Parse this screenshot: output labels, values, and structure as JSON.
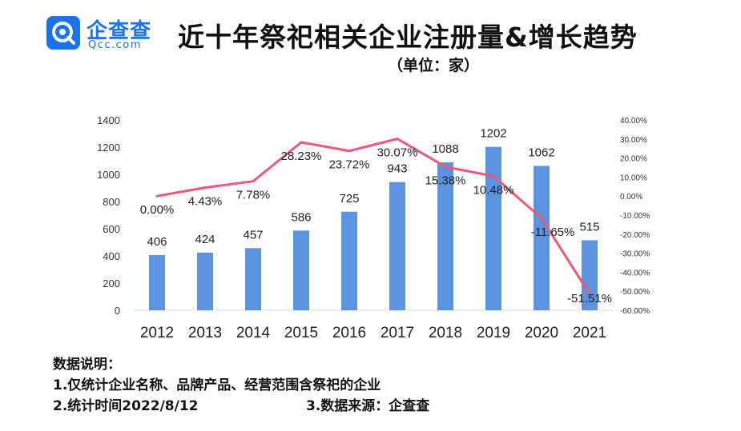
{
  "logo": {
    "icon": "qcc-logo-icon",
    "text_cn": "企查查",
    "text_en": "Qcc.com",
    "color": "#1a73e8"
  },
  "header": {
    "title": "近十年祭祀相关企业注册量&增长趋势",
    "unit": "（单位：家）"
  },
  "chart_data": {
    "type": "bar+line",
    "categories": [
      "2012",
      "2013",
      "2014",
      "2015",
      "2016",
      "2017",
      "2018",
      "2019",
      "2020",
      "2021"
    ],
    "series": [
      {
        "type": "bar",
        "axis": "left",
        "color": "#5b93e0",
        "values": [
          406,
          424,
          457,
          586,
          725,
          943,
          1088,
          1202,
          1062,
          515
        ],
        "labels": [
          "406",
          "424",
          "457",
          "586",
          "725",
          "943",
          "1088",
          "1202",
          "1062",
          "515"
        ]
      },
      {
        "type": "line",
        "axis": "right",
        "color": "#e85a77",
        "values": [
          0.0,
          4.43,
          7.78,
          28.23,
          23.72,
          30.07,
          15.38,
          10.48,
          -11.65,
          -51.51
        ],
        "labels": [
          "0.00%",
          "4.43%",
          "7.78%",
          "28.23%",
          "23.72%",
          "30.07%",
          "15.38%",
          "10.48%",
          "-11.65%",
          "-51.51%"
        ]
      }
    ],
    "left_axis": {
      "ylim": [
        0,
        1400
      ],
      "ticks": [
        "0",
        "200",
        "400",
        "600",
        "800",
        "1000",
        "1200",
        "1400"
      ]
    },
    "right_axis": {
      "ylim": [
        -60,
        40
      ],
      "ticks": [
        "-60.00%",
        "-50.00%",
        "-40.00%",
        "-30.00%",
        "-20.00%",
        "-10.00%",
        "0.00%",
        "10.00%",
        "20.00%",
        "30.00%",
        "40.00%"
      ]
    },
    "grid": false,
    "legend": "none"
  },
  "notes": {
    "heading": "数据说明：",
    "line1": "1.仅统计企业名称、品牌产品、经营范围含祭祀的企业",
    "line2": "2.统计时间2022/8/12",
    "line3": "3.数据来源：企查查"
  }
}
